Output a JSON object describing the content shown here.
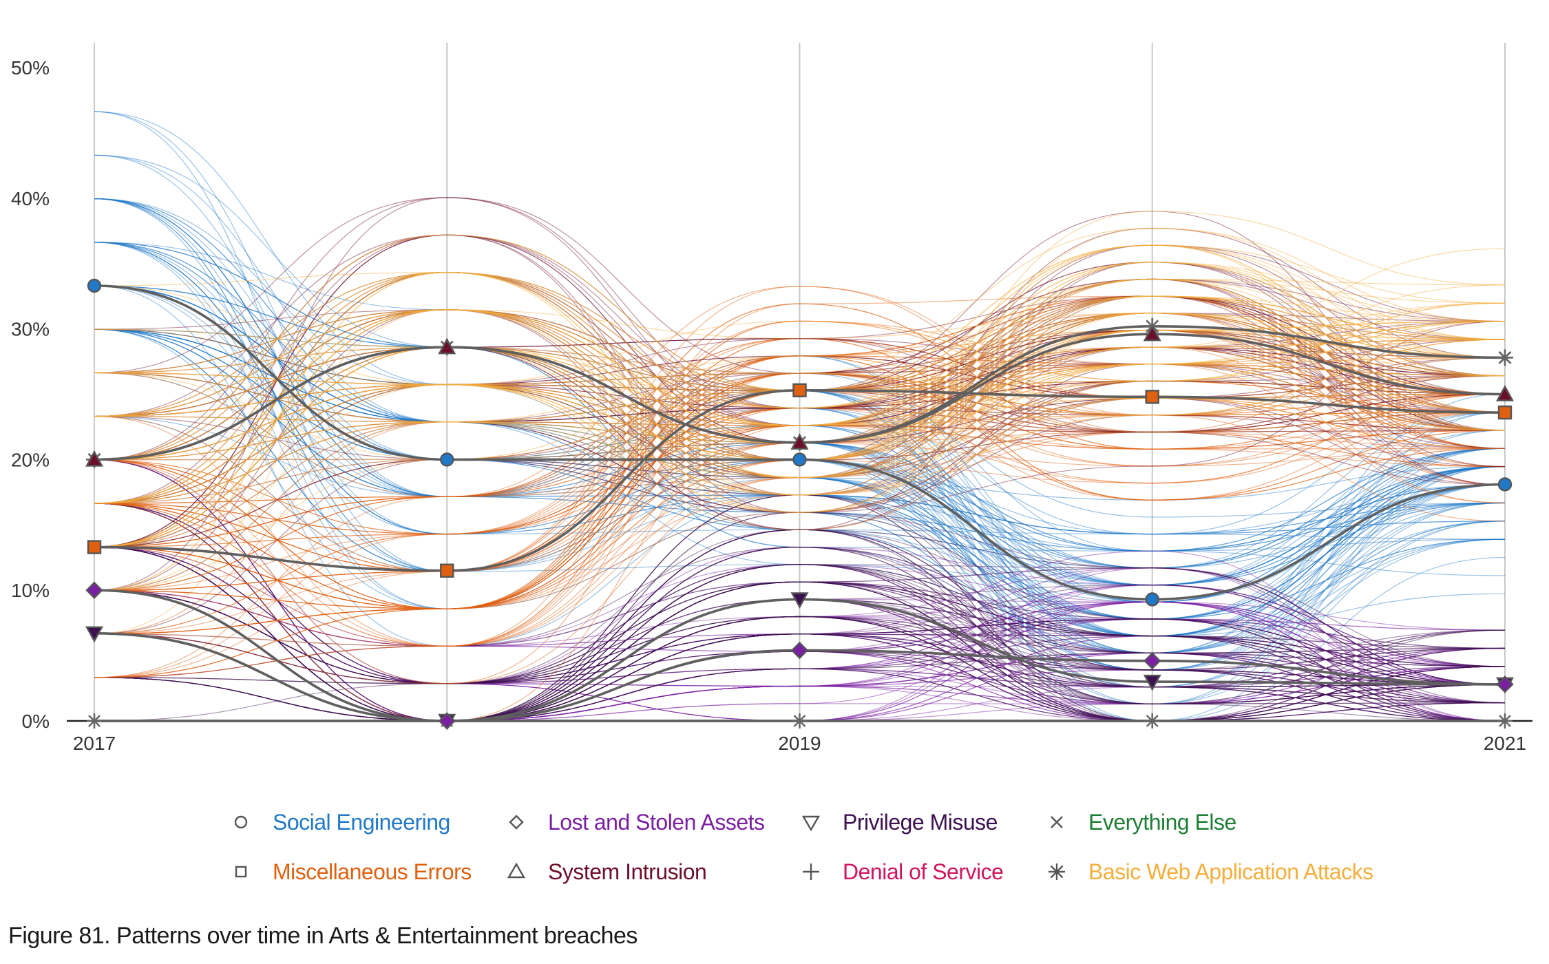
{
  "chart_data": {
    "type": "line",
    "title": "",
    "xlabel": "",
    "ylabel": "",
    "x_ticks": [
      "2017",
      "2019",
      "2021"
    ],
    "x": [
      2017,
      2018,
      2019,
      2020,
      2021
    ],
    "ylim": [
      0,
      50
    ],
    "y_ticks": [
      "0%",
      "10%",
      "20%",
      "30%",
      "40%",
      "50%"
    ],
    "grid": "vertical",
    "legend_position": "bottom",
    "series": [
      {
        "name": "Social Engineering",
        "color": "#1f78c8",
        "marker": "circle",
        "values": [
          33.3,
          20.0,
          20.0,
          9.3,
          18.1
        ]
      },
      {
        "name": "Lost and Stolen Assets",
        "color": "#7b1fa2",
        "marker": "diamond",
        "values": [
          10.0,
          0,
          5.4,
          4.6,
          2.8
        ]
      },
      {
        "name": "Privilege Misuse",
        "color": "#3d1150",
        "marker": "triangle-down",
        "values": [
          6.7,
          0,
          9.3,
          3.0,
          2.8
        ]
      },
      {
        "name": "Everything Else",
        "color": "#1e7e34",
        "marker": "x",
        "values": [
          0,
          0,
          0,
          0,
          0
        ]
      },
      {
        "name": "Miscellaneous Errors",
        "color": "#e06010",
        "marker": "square",
        "values": [
          13.3,
          11.5,
          25.3,
          24.8,
          23.6
        ]
      },
      {
        "name": "System Intrusion",
        "color": "#6d0f2a",
        "marker": "triangle-up",
        "values": [
          20.0,
          28.6,
          21.3,
          29.6,
          25.0
        ]
      },
      {
        "name": "Denial of Service",
        "color": "#d0155f",
        "marker": "plus",
        "values": [
          0,
          0,
          0,
          0,
          0
        ]
      },
      {
        "name": "Basic Web Application Attacks",
        "color": "#f5ae3c",
        "marker": "asterisk",
        "values": [
          20.0,
          28.6,
          21.3,
          30.2,
          27.8
        ]
      }
    ]
  },
  "legend": {
    "items": [
      {
        "label": "Social Engineering",
        "color": "#1f78c8",
        "icon": "circle-icon"
      },
      {
        "label": "Lost and Stolen Assets",
        "color": "#7b1fa2",
        "icon": "diamond-icon"
      },
      {
        "label": "Privilege Misuse",
        "color": "#3d1150",
        "icon": "triangle-down-icon"
      },
      {
        "label": "Everything Else",
        "color": "#1e7e34",
        "icon": "x-icon"
      },
      {
        "label": "Miscellaneous Errors",
        "color": "#e06010",
        "icon": "square-icon"
      },
      {
        "label": "System Intrusion",
        "color": "#6d0f2a",
        "icon": "triangle-up-icon"
      },
      {
        "label": "Denial of Service",
        "color": "#d0155f",
        "icon": "plus-icon"
      },
      {
        "label": "Basic Web Application Attacks",
        "color": "#f5ae3c",
        "icon": "asterisk-icon"
      }
    ]
  },
  "caption": "Figure 81. Patterns over time in Arts & Entertainment breaches"
}
